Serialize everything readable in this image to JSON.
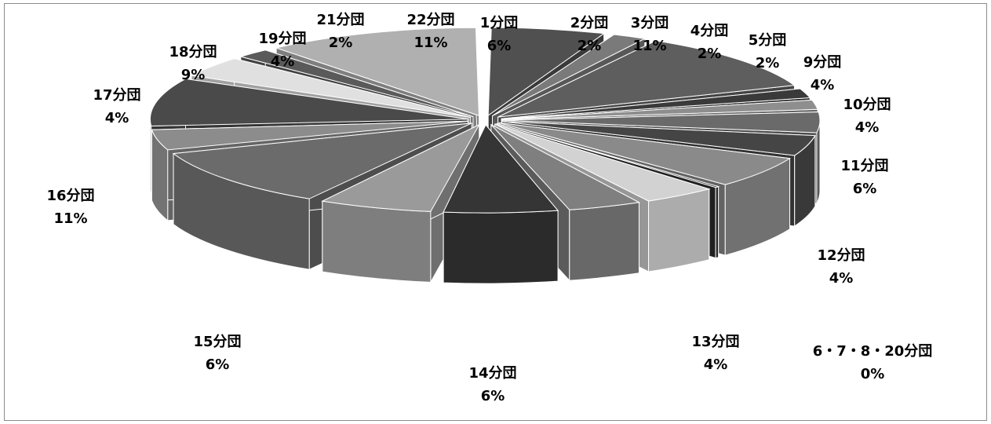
{
  "chart_data": {
    "type": "pie",
    "style": "3d-exploded-grayscale",
    "title": "",
    "legend": "none",
    "slices": [
      {
        "name": "1分団",
        "label": "6%",
        "value": 6,
        "color": "#505050"
      },
      {
        "name": "2分団",
        "label": "2%",
        "value": 2,
        "color": "#7a7a7a"
      },
      {
        "name": "3分団",
        "label": "11%",
        "value": 11,
        "color": "#5e5e5e"
      },
      {
        "name": "4分団",
        "label": "2%",
        "value": 2,
        "color": "#3a3a3a"
      },
      {
        "name": "5分団",
        "label": "2%",
        "value": 2,
        "color": "#8e8e8e"
      },
      {
        "name": "9分団",
        "label": "4%",
        "value": 4,
        "color": "#6a6a6a"
      },
      {
        "name": "10分団",
        "label": "4%",
        "value": 4,
        "color": "#454545"
      },
      {
        "name": "11分団",
        "label": "6%",
        "value": 6,
        "color": "#8a8a8a"
      },
      {
        "name": "6・7・8・20分団",
        "label": "0%",
        "value": 0.5,
        "color": "#2e2e2e"
      },
      {
        "name": "12分団",
        "label": "4%",
        "value": 4,
        "color": "#d2d2d2"
      },
      {
        "name": "13分団",
        "label": "4%",
        "value": 4,
        "color": "#7f7f7f"
      },
      {
        "name": "14分団",
        "label": "6%",
        "value": 6,
        "color": "#353535"
      },
      {
        "name": "15分団",
        "label": "6%",
        "value": 6,
        "color": "#9a9a9a"
      },
      {
        "name": "16分団",
        "label": "11%",
        "value": 11,
        "color": "#6b6b6b"
      },
      {
        "name": "17分団",
        "label": "4%",
        "value": 4,
        "color": "#8c8c8c"
      },
      {
        "name": "18分団",
        "label": "9%",
        "value": 9,
        "color": "#4a4a4a"
      },
      {
        "name": "19分団",
        "label": "4%",
        "value": 4,
        "color": "#e0e0e0"
      },
      {
        "name": "21分団",
        "label": "2%",
        "value": 2,
        "color": "#5a5a5a"
      },
      {
        "name": "22分団",
        "label": "11%",
        "value": 11,
        "color": "#b0b0b0"
      }
    ]
  }
}
